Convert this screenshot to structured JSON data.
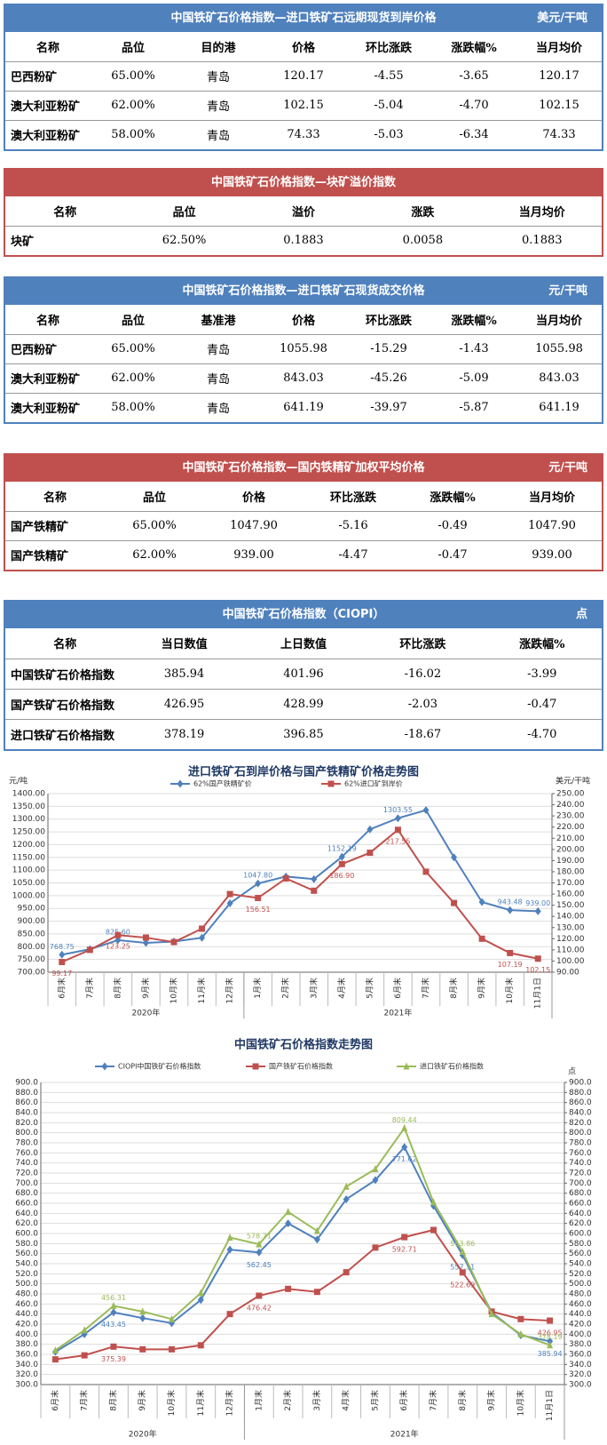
{
  "tables": [
    {
      "title": "中国铁矿石价格指数—进口铁矿石远期现货到岸价格",
      "unit": "美元/干吨",
      "theme": "#4f81bd",
      "header": [
        "名称",
        "品位",
        "目的港",
        "价格",
        "环比涨跌",
        "涨跌幅%",
        "当月均价"
      ],
      "rows": [
        [
          "巴西粉矿",
          "65.00%",
          "青岛",
          "120.17",
          "-4.55",
          "-3.65",
          "120.17"
        ],
        [
          "澳大利亚粉矿",
          "62.00%",
          "青岛",
          "102.15",
          "-5.04",
          "-4.70",
          "102.15"
        ],
        [
          "澳大利亚粉矿",
          "58.00%",
          "青岛",
          "74.33",
          "-5.03",
          "-6.34",
          "74.33"
        ]
      ]
    },
    {
      "title": "中国铁矿石价格指数—块矿溢价指数",
      "theme": "#c0504d",
      "header": [
        "名称",
        "品位",
        "溢价",
        "涨跌",
        "当月均价"
      ],
      "rows": [
        [
          "块矿",
          "62.50%",
          "0.1883",
          "0.0058",
          "0.1883"
        ]
      ]
    },
    {
      "title": "中国铁矿石价格指数—进口铁矿石现货成交价格",
      "unit": "元/干吨",
      "theme": "#4f81bd",
      "header": [
        "名称",
        "品位",
        "基准港",
        "价格",
        "环比涨跌",
        "涨跌幅%",
        "当月均价"
      ],
      "rows": [
        [
          "巴西粉矿",
          "65.00%",
          "青岛",
          "1055.98",
          "-15.29",
          "-1.43",
          "1055.98"
        ],
        [
          "澳大利亚粉矿",
          "62.00%",
          "青岛",
          "843.03",
          "-45.26",
          "-5.09",
          "843.03"
        ],
        [
          "澳大利亚粉矿",
          "58.00%",
          "青岛",
          "641.19",
          "-39.97",
          "-5.87",
          "641.19"
        ]
      ]
    },
    {
      "title": "中国铁矿石价格指数—国内铁精矿加权平均价格",
      "unit": "元/干吨",
      "theme": "#c0504d",
      "header": [
        "名称",
        "品位",
        "价格",
        "环比涨跌",
        "涨跌幅%",
        "当月均价"
      ],
      "rows": [
        [
          "国产铁精矿",
          "65.00%",
          "1047.90",
          "-5.16",
          "-0.49",
          "1047.90"
        ],
        [
          "国产铁精矿",
          "62.00%",
          "939.00",
          "-4.47",
          "-0.47",
          "939.00"
        ]
      ]
    },
    {
      "title": "中国铁矿石价格指数（CIOPI）",
      "unit": "点",
      "theme": "#4f81bd",
      "header": [
        "名称",
        "当日数值",
        "上日数值",
        "环比涨跌",
        "涨跌幅%"
      ],
      "rows": [
        [
          "中国铁矿石价格指数",
          "385.94",
          "401.96",
          "-16.02",
          "-3.99"
        ],
        [
          "国产铁矿石价格指数",
          "426.95",
          "428.99",
          "-2.03",
          "-0.47"
        ],
        [
          "进口铁矿石价格指数",
          "378.19",
          "396.85",
          "-18.67",
          "-4.70"
        ]
      ]
    }
  ],
  "chart_data": [
    {
      "type": "line",
      "title": "进口铁矿石到岸价格与国产铁精矿价格走势图",
      "y_label": "元/吨",
      "y2_label": "美元/干吨",
      "grid": true,
      "categories": [
        "6月末",
        "7月末",
        "8月末",
        "9月末",
        "10月末",
        "11月末",
        "12月末",
        "1月末",
        "2月末",
        "3月末",
        "4月末",
        "5月末",
        "6月末",
        "7月末",
        "8月末",
        "9月末",
        "10月末",
        "11月1日"
      ],
      "x_groups": [
        {
          "label": "2020年",
          "count": 7
        },
        {
          "label": "2021年",
          "count": 11
        }
      ],
      "series": [
        {
          "name": "62%国产铁精矿价",
          "color": "#4f81bd",
          "marker": "diamond",
          "values": [
            768.75,
            790,
            825.6,
            815,
            820,
            835,
            970,
            1047.8,
            1075,
            1065,
            1152.19,
            1260,
            1303.55,
            1335,
            1150,
            975,
            943.48,
            939
          ],
          "value_labels": [
            "768.75",
            null,
            "825.60",
            null,
            null,
            null,
            null,
            "1047.80",
            null,
            null,
            "1152.19",
            null,
            "1303.55",
            null,
            null,
            null,
            "943.48",
            "939.00"
          ]
        },
        {
          "name": "62%进口矿到岸价",
          "color": "#c0504d",
          "marker": "square",
          "axis": "y2",
          "values": [
            99.17,
            110,
            123.25,
            121,
            117,
            129,
            160,
            156.51,
            174,
            163,
            186.9,
            197,
            217.55,
            180,
            152,
            120,
            107.19,
            102.15
          ],
          "value_labels": [
            "99.17",
            null,
            "123.25",
            null,
            null,
            null,
            null,
            "156.51",
            null,
            null,
            "186.90",
            null,
            "217.55",
            null,
            null,
            null,
            "107.19",
            "102.15"
          ]
        }
      ],
      "ylim": [
        700,
        1400
      ],
      "yticks": [
        {
          "value": 700,
          "label": "700.00"
        },
        {
          "value": 750,
          "label": "750.00"
        },
        {
          "value": 800,
          "label": "800.00"
        },
        {
          "value": 850,
          "label": "850.00"
        },
        {
          "value": 900,
          "label": "900.00"
        },
        {
          "value": 950,
          "label": "950.00"
        },
        {
          "value": 1000,
          "label": "1000.00"
        },
        {
          "value": 1050,
          "label": "1050.00"
        },
        {
          "value": 1100,
          "label": "1100.00"
        },
        {
          "value": 1150,
          "label": "1150.00"
        },
        {
          "value": 1200,
          "label": "1200.00"
        },
        {
          "value": 1250,
          "label": "1250.00"
        },
        {
          "value": 1300,
          "label": "1300.00"
        },
        {
          "value": 1350,
          "label": "1350.00"
        },
        {
          "value": 1400,
          "label": "1400.00"
        }
      ],
      "y2lim": [
        90,
        250
      ],
      "y2ticks": [
        {
          "value": 90,
          "label": "90.00"
        },
        {
          "value": 100,
          "label": "100.00"
        },
        {
          "value": 110,
          "label": "110.00"
        },
        {
          "value": 120,
          "label": "120.00"
        },
        {
          "value": 130,
          "label": "130.00"
        },
        {
          "value": 140,
          "label": "140.00"
        },
        {
          "value": 150,
          "label": "150.00"
        },
        {
          "value": 160,
          "label": "160.00"
        },
        {
          "value": 170,
          "label": "170.00"
        },
        {
          "value": 180,
          "label": "180.00"
        },
        {
          "value": 190,
          "label": "190.00"
        },
        {
          "value": 200,
          "label": "200.00"
        },
        {
          "value": 210,
          "label": "210.00"
        },
        {
          "value": 220,
          "label": "220.00"
        },
        {
          "value": 230,
          "label": "230.00"
        },
        {
          "value": 240,
          "label": "240.00"
        },
        {
          "value": 250,
          "label": "250.00"
        }
      ]
    },
    {
      "type": "line",
      "title": "中国铁矿石价格指数走势图",
      "y2_label": "点",
      "grid": true,
      "categories": [
        "6月末",
        "7月末",
        "8月末",
        "9月末",
        "10月末",
        "11月末",
        "12月末",
        "1月末",
        "2月末",
        "3月末",
        "4月末",
        "5月末",
        "6月末",
        "7月末",
        "8月末",
        "9月末",
        "10月末",
        "11月1日"
      ],
      "x_groups": [
        {
          "label": "2020年",
          "count": 7
        },
        {
          "label": "2021年",
          "count": 11
        }
      ],
      "series": [
        {
          "name": "CIOPI中国铁矿石价格指数",
          "color": "#4f81bd",
          "marker": "diamond",
          "values": [
            365,
            400,
            443.45,
            432,
            422,
            468,
            568,
            562.45,
            620,
            588,
            668,
            706,
            771.62,
            655,
            557.31,
            443,
            398,
            385.94
          ],
          "value_labels": [
            null,
            null,
            "443.45",
            null,
            null,
            null,
            null,
            "562.45",
            null,
            null,
            null,
            null,
            "771.62",
            null,
            "557.31",
            null,
            null,
            "385.94"
          ]
        },
        {
          "name": "国产铁矿石价格指数",
          "color": "#c0504d",
          "marker": "square",
          "values": [
            350,
            358,
            375.39,
            370,
            370,
            378,
            440,
            476.42,
            490,
            484,
            523,
            572,
            592.71,
            607,
            522.69,
            445,
            430,
            426.95
          ],
          "value_labels": [
            null,
            null,
            "375.39",
            null,
            null,
            null,
            null,
            "476.42",
            null,
            null,
            null,
            null,
            "592.71",
            null,
            "522.69",
            null,
            null,
            "426.95"
          ]
        },
        {
          "name": "进口铁矿石价格指数",
          "color": "#9bbb59",
          "marker": "triangle",
          "values": [
            368,
            408,
            456.31,
            445,
            430,
            482,
            592,
            578.71,
            643,
            605,
            693,
            728,
            809.44,
            662,
            563.86,
            440,
            400,
            378.19
          ],
          "value_labels": [
            null,
            null,
            "456.31",
            null,
            null,
            null,
            null,
            "578.71",
            null,
            null,
            null,
            null,
            "809.44",
            null,
            "563.86",
            null,
            null,
            "378.19"
          ]
        }
      ],
      "ylim": [
        300,
        900
      ],
      "yticks": [
        {
          "value": 300,
          "label": "300.0"
        },
        {
          "value": 320,
          "label": "320.0"
        },
        {
          "value": 340,
          "label": "340.0"
        },
        {
          "value": 360,
          "label": "360.0"
        },
        {
          "value": 380,
          "label": "380.0"
        },
        {
          "value": 400,
          "label": "400.0"
        },
        {
          "value": 420,
          "label": "420.0"
        },
        {
          "value": 440,
          "label": "440.0"
        },
        {
          "value": 460,
          "label": "460.0"
        },
        {
          "value": 480,
          "label": "480.0"
        },
        {
          "value": 500,
          "label": "500.0"
        },
        {
          "value": 520,
          "label": "520.0"
        },
        {
          "value": 540,
          "label": "540.0"
        },
        {
          "value": 560,
          "label": "560.0"
        },
        {
          "value": 580,
          "label": "580.0"
        },
        {
          "value": 600,
          "label": "600.0"
        },
        {
          "value": 620,
          "label": "620.0"
        },
        {
          "value": 640,
          "label": "640.0"
        },
        {
          "value": 660,
          "label": "660.0"
        },
        {
          "value": 680,
          "label": "680.0"
        },
        {
          "value": 700,
          "label": "700.0"
        },
        {
          "value": 720,
          "label": "720.0"
        },
        {
          "value": 740,
          "label": "740.0"
        },
        {
          "value": 760,
          "label": "760.0"
        },
        {
          "value": 780,
          "label": "780.0"
        },
        {
          "value": 800,
          "label": "800.0"
        },
        {
          "value": 820,
          "label": "820.0"
        },
        {
          "value": 840,
          "label": "840.0"
        },
        {
          "value": 860,
          "label": "860.0"
        },
        {
          "value": 880,
          "label": "880.0"
        },
        {
          "value": 900,
          "label": "900.0"
        }
      ],
      "y2lim": [
        300,
        900
      ],
      "y2ticks": [
        {
          "value": 300,
          "label": "300.0"
        },
        {
          "value": 320,
          "label": "320.0"
        },
        {
          "value": 340,
          "label": "340.0"
        },
        {
          "value": 360,
          "label": "360.0"
        },
        {
          "value": 380,
          "label": "380.0"
        },
        {
          "value": 400,
          "label": "400.0"
        },
        {
          "value": 420,
          "label": "420.0"
        },
        {
          "value": 440,
          "label": "440.0"
        },
        {
          "value": 460,
          "label": "460.0"
        },
        {
          "value": 480,
          "label": "480.0"
        },
        {
          "value": 500,
          "label": "500.0"
        },
        {
          "value": 520,
          "label": "520.0"
        },
        {
          "value": 540,
          "label": "540.0"
        },
        {
          "value": 560,
          "label": "560.0"
        },
        {
          "value": 580,
          "label": "580.0"
        },
        {
          "value": 600,
          "label": "600.0"
        },
        {
          "value": 620,
          "label": "620.0"
        },
        {
          "value": 640,
          "label": "640.0"
        },
        {
          "value": 660,
          "label": "660.0"
        },
        {
          "value": 680,
          "label": "680.0"
        },
        {
          "value": 700,
          "label": "700.0"
        },
        {
          "value": 720,
          "label": "720.0"
        },
        {
          "value": 740,
          "label": "740.0"
        },
        {
          "value": 760,
          "label": "760.0"
        },
        {
          "value": 780,
          "label": "780.0"
        },
        {
          "value": 800,
          "label": "800.0"
        },
        {
          "value": 820,
          "label": "820.0"
        },
        {
          "value": 840,
          "label": "840.0"
        },
        {
          "value": 860,
          "label": "860.0"
        },
        {
          "value": 880,
          "label": "880.0"
        },
        {
          "value": 900,
          "label": "900.0"
        }
      ]
    }
  ]
}
